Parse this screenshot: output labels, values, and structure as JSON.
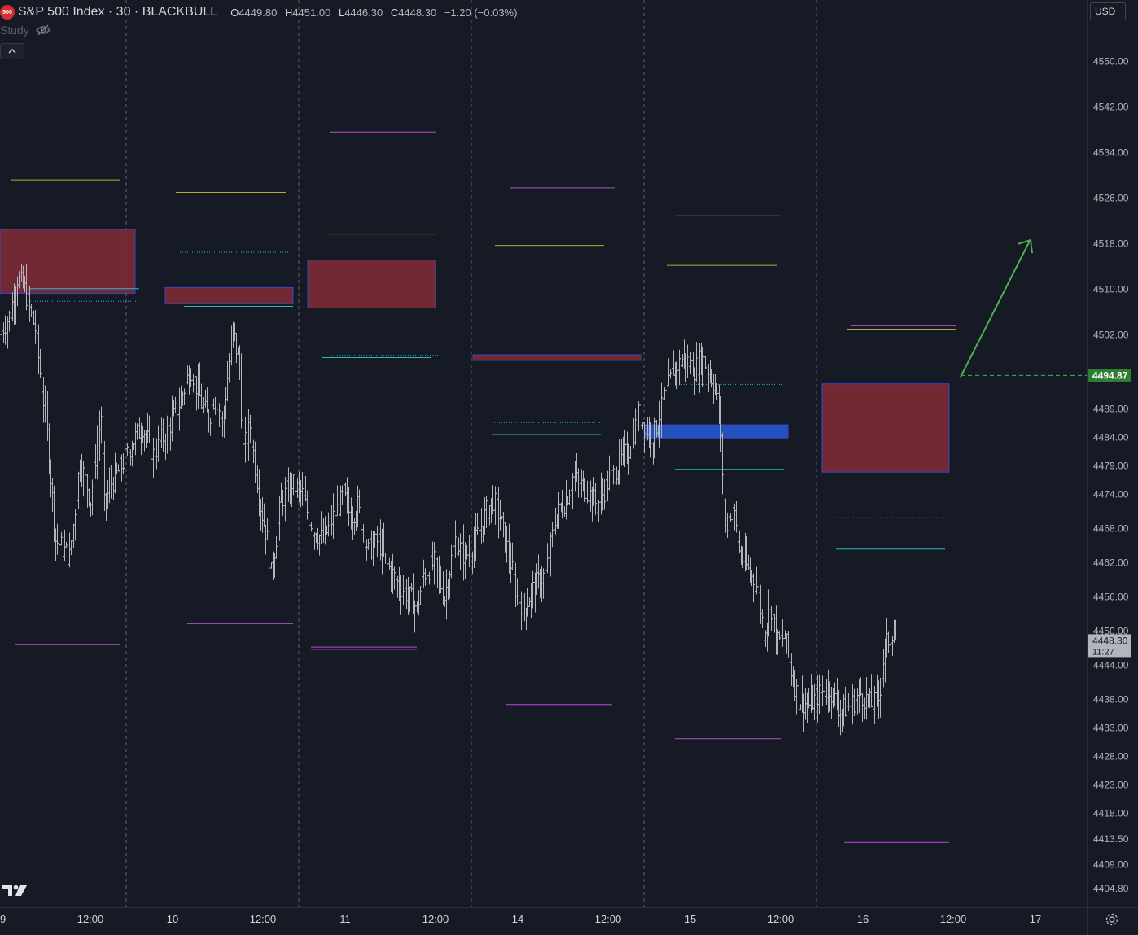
{
  "legend": {
    "logo_text": "500",
    "title": "S&P 500 Index · 30 · BLACKBULL",
    "open_label": "O",
    "open": "4449.80",
    "high_label": "H",
    "high": "4451.00",
    "low_label": "L",
    "low": "4446.30",
    "close_label": "C",
    "close": "4448.30",
    "change": "−1.20 (−0.03%)"
  },
  "study_label": "Study",
  "currency": "USD",
  "colors": {
    "background": "#161a25",
    "candle": "#b2b5be",
    "supply_zone": "#772a35",
    "demand_zone": "#2455c8",
    "zone_border": "#3b4bcf",
    "magenta_line": "#b84ad6",
    "yellow_line": "#b5a938",
    "cyan_line": "#2fb6c9",
    "arrow": "#4caf50",
    "price_label_bg": "#2e7d32",
    "current_price_bg": "#b2b5be"
  },
  "chart_data": {
    "type": "ohlc",
    "interval": "30 minutes",
    "ylim": [
      4401.5,
      4557.5
    ],
    "grid": false,
    "y_ticks": [
      "4404.80",
      "4409.00",
      "4413.50",
      "4418.00",
      "4423.00",
      "4428.00",
      "4433.00",
      "4438.00",
      "4444.00",
      "4450.00",
      "4456.00",
      "4462.00",
      "4468.00",
      "4474.00",
      "4479.00",
      "4484.00",
      "4489.00",
      "4494.87",
      "4502.00",
      "4510.00",
      "4518.00",
      "4526.00",
      "4534.00",
      "4542.00",
      "4550.00"
    ],
    "y_tick_values": [
      4404.8,
      4409,
      4413.5,
      4418,
      4423,
      4428,
      4433,
      4438,
      4444,
      4450,
      4456,
      4462,
      4468,
      4474,
      4479,
      4484,
      4489,
      4494.87,
      4502,
      4510,
      4518,
      4526,
      4534,
      4542,
      4550
    ],
    "x_ticks": [
      "9",
      "12:00",
      "10",
      "12:00",
      "11",
      "12:00",
      "14",
      "12:00",
      "15",
      "12:00",
      "16",
      "12:00",
      "17"
    ],
    "session_separators": [
      "10",
      "11",
      "14",
      "15",
      "16"
    ],
    "marked_price": "4494.87",
    "current_price": "4448.30",
    "countdown": "11:27",
    "price_path": [
      [
        0,
        4502
      ],
      [
        6,
        4506
      ],
      [
        10,
        4512
      ],
      [
        14,
        4510
      ],
      [
        20,
        4503
      ],
      [
        26,
        4488
      ],
      [
        32,
        4466
      ],
      [
        40,
        4463
      ],
      [
        46,
        4480
      ],
      [
        52,
        4473
      ],
      [
        58,
        4488
      ],
      [
        60,
        4472
      ],
      [
        64,
        4476
      ],
      [
        70,
        4479
      ],
      [
        76,
        4483
      ],
      [
        82,
        4486
      ],
      [
        88,
        4481
      ],
      [
        96,
        4485
      ],
      [
        102,
        4489
      ],
      [
        110,
        4496
      ],
      [
        116,
        4490
      ],
      [
        120,
        4487
      ],
      [
        124,
        4492
      ],
      [
        128,
        4486
      ],
      [
        134,
        4503
      ],
      [
        138,
        4496
      ],
      [
        140,
        4482
      ],
      [
        144,
        4486
      ],
      [
        150,
        4472
      ],
      [
        154,
        4466
      ],
      [
        156,
        4460
      ],
      [
        162,
        4473
      ],
      [
        168,
        4476
      ],
      [
        174,
        4474
      ],
      [
        180,
        4468
      ],
      [
        186,
        4466
      ],
      [
        192,
        4470
      ],
      [
        198,
        4474
      ],
      [
        202,
        4470
      ],
      [
        206,
        4472
      ],
      [
        212,
        4464
      ],
      [
        218,
        4466
      ],
      [
        222,
        4462
      ],
      [
        230,
        4458
      ],
      [
        236,
        4456
      ],
      [
        240,
        4454
      ],
      [
        244,
        4460
      ],
      [
        250,
        4462
      ],
      [
        256,
        4456
      ],
      [
        262,
        4466
      ],
      [
        268,
        4463
      ],
      [
        274,
        4466
      ],
      [
        280,
        4471
      ],
      [
        284,
        4473
      ],
      [
        288,
        4470
      ],
      [
        294,
        4462
      ],
      [
        298,
        4456
      ],
      [
        302,
        4454
      ],
      [
        308,
        4458
      ],
      [
        314,
        4460
      ],
      [
        320,
        4470
      ],
      [
        326,
        4473
      ],
      [
        330,
        4477
      ],
      [
        334,
        4476
      ],
      [
        340,
        4474
      ],
      [
        344,
        4472
      ],
      [
        350,
        4476
      ],
      [
        356,
        4479
      ],
      [
        362,
        4482
      ],
      [
        368,
        4488
      ],
      [
        372,
        4486
      ],
      [
        376,
        4484
      ],
      [
        380,
        4488
      ],
      [
        384,
        4492
      ],
      [
        388,
        4496
      ],
      [
        394,
        4498
      ],
      [
        400,
        4496
      ],
      [
        404,
        4498
      ],
      [
        408,
        4496
      ],
      [
        412,
        4493
      ],
      [
        414,
        4488
      ],
      [
        418,
        4468
      ],
      [
        422,
        4472
      ],
      [
        426,
        4464
      ],
      [
        432,
        4460
      ],
      [
        436,
        4458
      ],
      [
        440,
        4450
      ],
      [
        444,
        4454
      ],
      [
        448,
        4448
      ],
      [
        452,
        4449
      ],
      [
        456,
        4443
      ],
      [
        460,
        4438
      ],
      [
        466,
        4437
      ],
      [
        472,
        4439
      ],
      [
        478,
        4440
      ],
      [
        484,
        4436
      ],
      [
        490,
        4437
      ],
      [
        496,
        4439
      ],
      [
        502,
        4437
      ],
      [
        506,
        4438
      ],
      [
        510,
        4447
      ],
      [
        514,
        4450
      ],
      [
        516,
        4448.3
      ]
    ],
    "zones": [
      {
        "kind": "supply",
        "top": 4520.5,
        "bottom": 4509.3
      },
      {
        "kind": "supply",
        "top": 4510.3,
        "bottom": 4507.5
      },
      {
        "kind": "supply",
        "top": 4515.1,
        "bottom": 4506.7
      },
      {
        "kind": "supply",
        "top": 4498.5,
        "bottom": 4497.5
      },
      {
        "kind": "demand",
        "top": 4486.2,
        "bottom": 4483.9
      },
      {
        "kind": "supply",
        "top": 4493.4,
        "bottom": 4477.9
      }
    ],
    "levels": [
      {
        "color": "magenta",
        "price": 4537.6
      },
      {
        "color": "magenta",
        "price": 4527.8
      },
      {
        "color": "magenta",
        "price": 4522.9
      },
      {
        "color": "magenta",
        "price": 4503.7
      },
      {
        "color": "magenta",
        "price": 4451.3
      },
      {
        "color": "magenta",
        "price": 4447.6
      },
      {
        "color": "magenta",
        "price": 4447.2
      },
      {
        "color": "magenta",
        "price": 4446.8
      },
      {
        "color": "magenta",
        "price": 4437.1
      },
      {
        "color": "magenta",
        "price": 4431.1
      },
      {
        "color": "magenta",
        "price": 4412.9
      },
      {
        "color": "yellow",
        "price": 4529.2
      },
      {
        "color": "yellow",
        "price": 4527.0
      },
      {
        "color": "yellow",
        "price": 4519.7
      },
      {
        "color": "yellow",
        "price": 4517.7
      },
      {
        "color": "yellow",
        "price": 4514.2
      },
      {
        "color": "yellow",
        "price": 4503.0
      },
      {
        "color": "cyan",
        "price": 4510.1
      },
      {
        "color": "cyan",
        "price": 4507.0
      },
      {
        "color": "cyan",
        "price": 4498.0
      },
      {
        "color": "cyan",
        "price": 4484.5
      },
      {
        "color": "cyan",
        "price": 4478.4
      },
      {
        "color": "cyan",
        "price": 4464.4
      },
      {
        "color": "cyan-dotted",
        "price": 4516.5
      },
      {
        "color": "cyan-dotted",
        "price": 4507.9
      },
      {
        "color": "cyan-dotted",
        "price": 4498.4
      },
      {
        "color": "cyan-dotted",
        "price": 4486.6
      },
      {
        "color": "cyan-dotted",
        "price": 4493.3
      },
      {
        "color": "cyan-dotted",
        "price": 4469.9
      }
    ],
    "projection_arrow": {
      "from": 4494.6,
      "to": 4518.5
    }
  }
}
